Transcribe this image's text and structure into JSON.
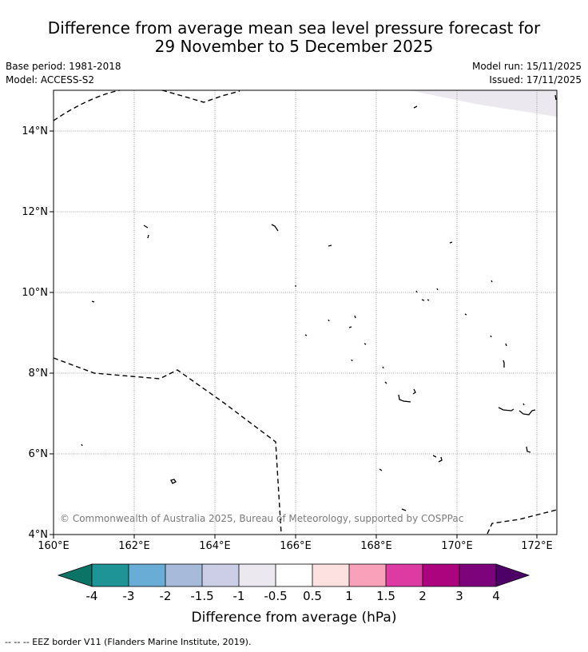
{
  "header": {
    "title_line1": "Difference from average mean sea level pressure forecast for",
    "title_line2": "29 November to 5 December 2025",
    "base_period": "Base period: 1981-2018",
    "model": "Model: ACCESS-S2",
    "model_run": "Model run: 15/11/2025",
    "issued": "Issued: 17/11/2025"
  },
  "map": {
    "lon_labels": [
      "160°E",
      "162°E",
      "164°E",
      "166°E",
      "168°E",
      "170°E",
      "172°E"
    ],
    "lat_labels": [
      "4°N",
      "6°N",
      "8°N",
      "10°N",
      "12°N",
      "14°N"
    ],
    "copyright": "© Commonwealth of Australia 2025, Bureau of Meteorology, supported by COSPPac",
    "land_color": "#000000",
    "anomaly_shading": {
      "range": "-1 to -0.5",
      "color": "#ebe9ef"
    }
  },
  "legend": {
    "title": "Difference from average (hPa)",
    "tick_labels": [
      "-4",
      "-3",
      "-2",
      "-1.5",
      "-1",
      "-0.5",
      "0.5",
      "1",
      "1.5",
      "2",
      "3",
      "4"
    ],
    "colors": [
      "#0b7466",
      "#1e9497",
      "#69acd6",
      "#a7bada",
      "#cccde6",
      "#ebe9ef",
      "#ffffff",
      "#fde0e0",
      "#f9a0ba",
      "#dd3aa2",
      "#ac047e",
      "#7d037c",
      "#4d0065"
    ]
  },
  "footer": {
    "eez_note": "--  --  -- EEZ border V11 (Flanders Marine Institute, 2019)."
  }
}
